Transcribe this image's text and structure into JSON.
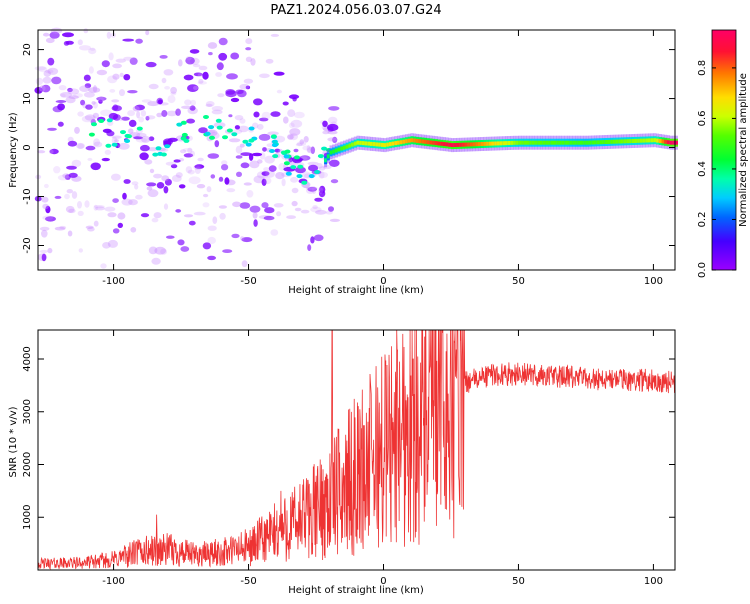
{
  "title": "PAZ1.2024.056.03.07.G24",
  "chart_data": [
    {
      "type": "heatmap",
      "xlabel": "Height of straight line (km)",
      "ylabel": "Frequency (Hz)",
      "xlim": [
        -128,
        108
      ],
      "ylim": [
        -25,
        24
      ],
      "xticks": [
        -100,
        -50,
        0,
        50,
        100
      ],
      "yticks": [
        -20,
        -10,
        0,
        10,
        20
      ],
      "colorbar": {
        "label": "Normalized spectral amplitude",
        "range": [
          0,
          0.95
        ],
        "ticks": [
          "0.0",
          "0.2",
          "0.4",
          "0.6",
          "0.8"
        ],
        "colormap": "gist_rainbow"
      },
      "ridge": [
        {
          "x": -120,
          "y": 1,
          "v": 0.2
        },
        {
          "x": -100,
          "y": 3,
          "v": 0.3
        },
        {
          "x": -80,
          "y": 1,
          "v": 0.3
        },
        {
          "x": -60,
          "y": 5,
          "v": 0.25
        },
        {
          "x": -40,
          "y": 0,
          "v": 0.25
        },
        {
          "x": -30,
          "y": -5,
          "v": 0.25
        },
        {
          "x": -25,
          "y": -5,
          "v": 0.3
        },
        {
          "x": -20,
          "y": -1,
          "v": 0.45
        },
        {
          "x": -10,
          "y": 1,
          "v": 0.6
        },
        {
          "x": 0,
          "y": 0.5,
          "v": 0.65
        },
        {
          "x": 10,
          "y": 1.5,
          "v": 0.75
        },
        {
          "x": 25,
          "y": 0.5,
          "v": 0.9
        },
        {
          "x": 50,
          "y": 1,
          "v": 0.55
        },
        {
          "x": 75,
          "y": 1,
          "v": 0.5
        },
        {
          "x": 100,
          "y": 1.5,
          "v": 0.6
        },
        {
          "x": 106,
          "y": 1,
          "v": 0.95
        }
      ]
    },
    {
      "type": "line",
      "xlabel": "Height of straight line (km)",
      "ylabel": "SNR (10 * v/v)",
      "xlim": [
        -128,
        108
      ],
      "ylim": [
        0,
        4550
      ],
      "xticks": [
        -100,
        -50,
        0,
        50,
        100
      ],
      "yticks": [
        1000,
        2000,
        3000,
        4000
      ],
      "color": "#ee3333",
      "envelope": [
        {
          "x": -128,
          "y": 120
        },
        {
          "x": -110,
          "y": 140
        },
        {
          "x": -100,
          "y": 200
        },
        {
          "x": -90,
          "y": 350
        },
        {
          "x": -80,
          "y": 380
        },
        {
          "x": -70,
          "y": 280
        },
        {
          "x": -60,
          "y": 330
        },
        {
          "x": -50,
          "y": 430
        },
        {
          "x": -40,
          "y": 700
        },
        {
          "x": -30,
          "y": 950
        },
        {
          "x": -20,
          "y": 1300
        },
        {
          "x": -10,
          "y": 1800
        },
        {
          "x": 0,
          "y": 2300
        },
        {
          "x": 10,
          "y": 2800
        },
        {
          "x": 20,
          "y": 3250
        },
        {
          "x": 30,
          "y": 3550
        },
        {
          "x": 40,
          "y": 3700
        },
        {
          "x": 50,
          "y": 3720
        },
        {
          "x": 60,
          "y": 3680
        },
        {
          "x": 70,
          "y": 3650
        },
        {
          "x": 80,
          "y": 3620
        },
        {
          "x": 90,
          "y": 3600
        },
        {
          "x": 100,
          "y": 3600
        },
        {
          "x": 108,
          "y": 3550
        }
      ],
      "spikes": [
        {
          "x": -19,
          "y": 4550
        },
        {
          "x": 11,
          "y": 4000
        },
        {
          "x": 6,
          "y": 3950
        },
        {
          "x": -84,
          "y": 1050
        },
        {
          "x": -38,
          "y": 1500
        },
        {
          "x": -28,
          "y": 1700
        }
      ]
    }
  ]
}
